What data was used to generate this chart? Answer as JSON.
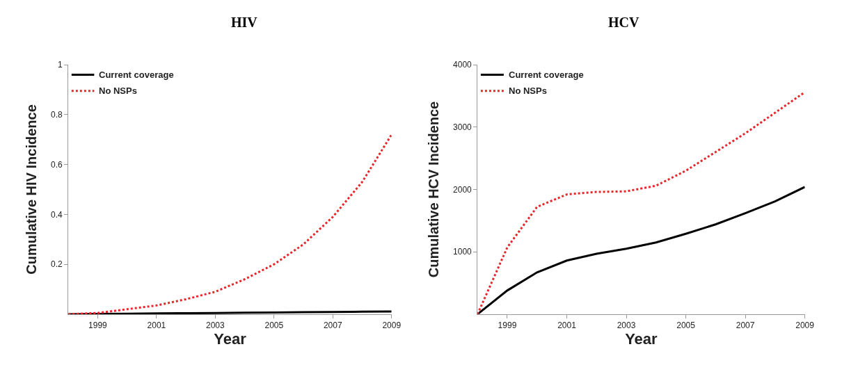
{
  "chart_data": [
    {
      "type": "line",
      "title": "HIV",
      "xlabel": "Year",
      "ylabel": "Cumulative HIV Incidence",
      "x": [
        1998,
        1999,
        2000,
        2001,
        2002,
        2003,
        2004,
        2005,
        2006,
        2007,
        2008,
        2009
      ],
      "xlim": [
        1998,
        2009
      ],
      "xticks": [
        1999,
        2001,
        2003,
        2005,
        2007,
        2009
      ],
      "ylim": [
        0,
        1
      ],
      "yticks": [
        0.2,
        0.4,
        0.6,
        0.8,
        1
      ],
      "legend": "top left",
      "series": [
        {
          "name": "Current coverage",
          "color": "#000000",
          "line_style": "solid",
          "values": [
            0,
            0.001,
            0.002,
            0.003,
            0.004,
            0.005,
            0.006,
            0.007,
            0.008,
            0.009,
            0.01,
            0.011
          ]
        },
        {
          "name": "No NSPs",
          "color": "#e8262a",
          "line_style": "dotted",
          "values": [
            0,
            0.005,
            0.02,
            0.035,
            0.06,
            0.09,
            0.14,
            0.2,
            0.28,
            0.39,
            0.53,
            0.72
          ]
        }
      ]
    },
    {
      "type": "line",
      "title": "HCV",
      "xlabel": "Year",
      "ylabel": "Cumulative HCV Incidence",
      "x": [
        1998,
        1999,
        2000,
        2001,
        2002,
        2003,
        2004,
        2005,
        2006,
        2007,
        2008,
        2009
      ],
      "xlim": [
        1998,
        2009
      ],
      "xticks": [
        1999,
        2001,
        2003,
        2005,
        2007,
        2009
      ],
      "ylim": [
        0,
        4000
      ],
      "yticks": [
        1000,
        2000,
        3000,
        4000
      ],
      "legend": "top left",
      "series": [
        {
          "name": "Current coverage",
          "color": "#000000",
          "line_style": "solid",
          "values": [
            0,
            380,
            670,
            860,
            970,
            1050,
            1150,
            1290,
            1440,
            1620,
            1810,
            2040
          ]
        },
        {
          "name": "No NSPs",
          "color": "#e8262a",
          "line_style": "dotted",
          "values": [
            0,
            1070,
            1720,
            1920,
            1960,
            1970,
            2060,
            2300,
            2600,
            2900,
            3230,
            3560
          ]
        }
      ]
    }
  ]
}
